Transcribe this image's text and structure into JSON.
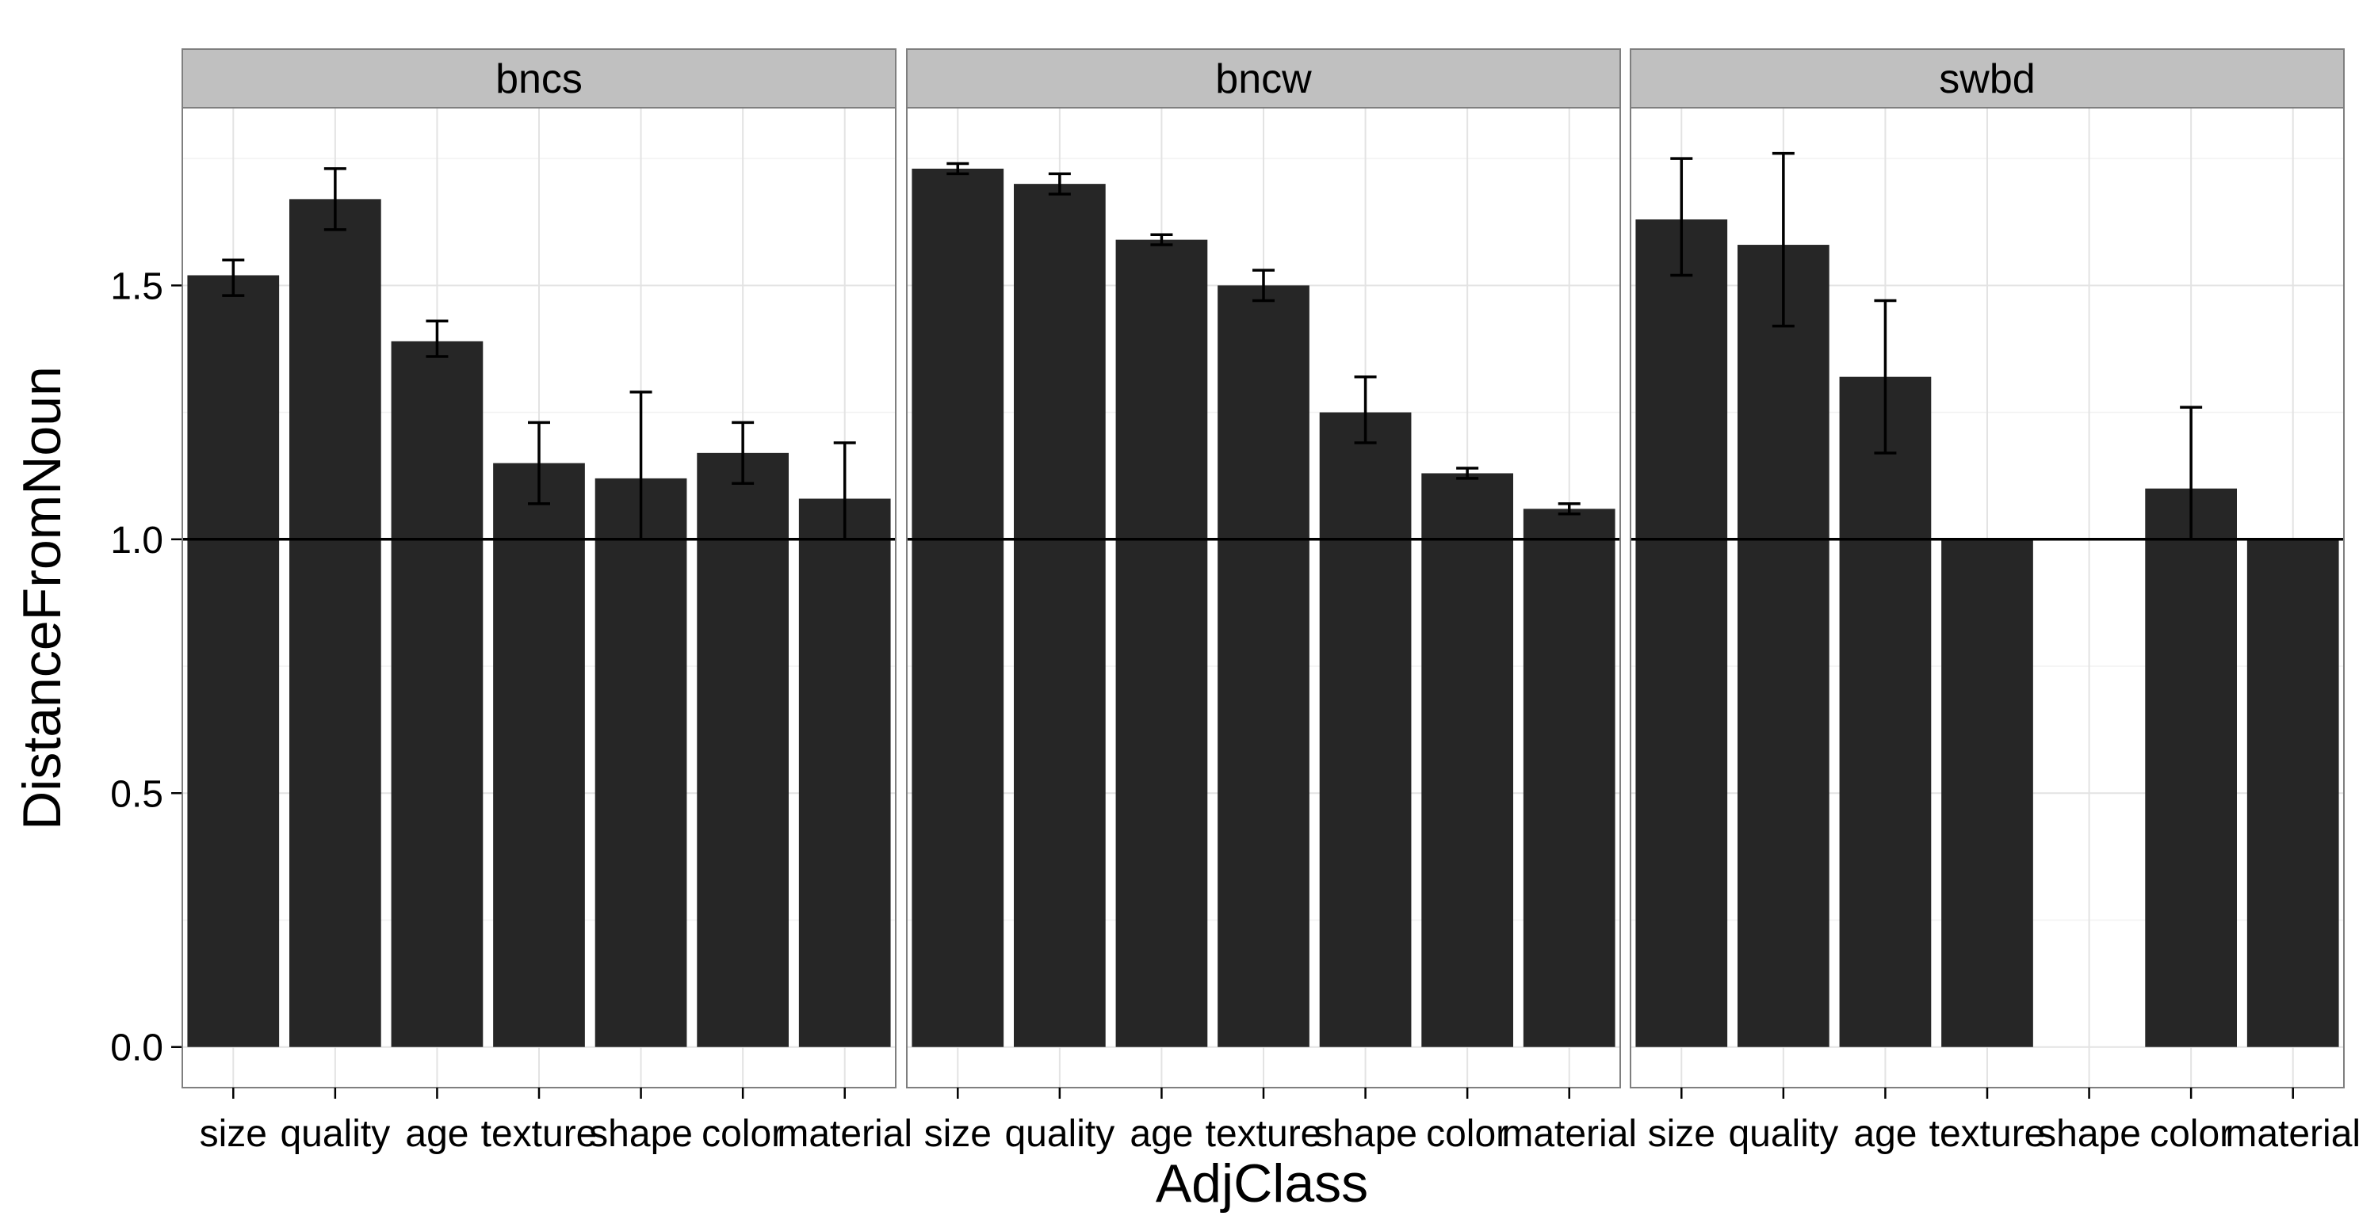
{
  "chart_data": {
    "type": "bar",
    "xlabel": "AdjClass",
    "ylabel": "DistanceFromNoun",
    "ylim": [
      -0.08,
      1.85
    ],
    "yticks": [
      "0.0",
      "0.5",
      "1.0",
      "1.5"
    ],
    "ytick_values": [
      0,
      0.5,
      1.0,
      1.5
    ],
    "reference_line": 1.0,
    "grid": true,
    "bar_color": "#262626",
    "strip_color": "#c0c0c0",
    "categories": [
      "size",
      "quality",
      "age",
      "texture",
      "shape",
      "color",
      "material"
    ],
    "panels": [
      {
        "name": "bncs",
        "values": [
          1.52,
          1.67,
          1.39,
          1.15,
          1.12,
          1.17,
          1.08
        ],
        "err_low": [
          1.48,
          1.61,
          1.36,
          1.07,
          1.0,
          1.11,
          1.0
        ],
        "err_high": [
          1.55,
          1.73,
          1.43,
          1.23,
          1.29,
          1.23,
          1.19
        ]
      },
      {
        "name": "bncw",
        "values": [
          1.73,
          1.7,
          1.59,
          1.5,
          1.25,
          1.13,
          1.06
        ],
        "err_low": [
          1.72,
          1.68,
          1.58,
          1.47,
          1.19,
          1.12,
          1.05
        ],
        "err_high": [
          1.74,
          1.72,
          1.6,
          1.53,
          1.32,
          1.14,
          1.07
        ]
      },
      {
        "name": "swbd",
        "values": [
          1.63,
          1.58,
          1.32,
          1.0,
          null,
          1.1,
          1.0
        ],
        "err_low": [
          1.52,
          1.42,
          1.17,
          1.0,
          null,
          1.0,
          1.0
        ],
        "err_high": [
          1.75,
          1.76,
          1.47,
          1.0,
          null,
          1.26,
          1.0
        ]
      }
    ]
  }
}
